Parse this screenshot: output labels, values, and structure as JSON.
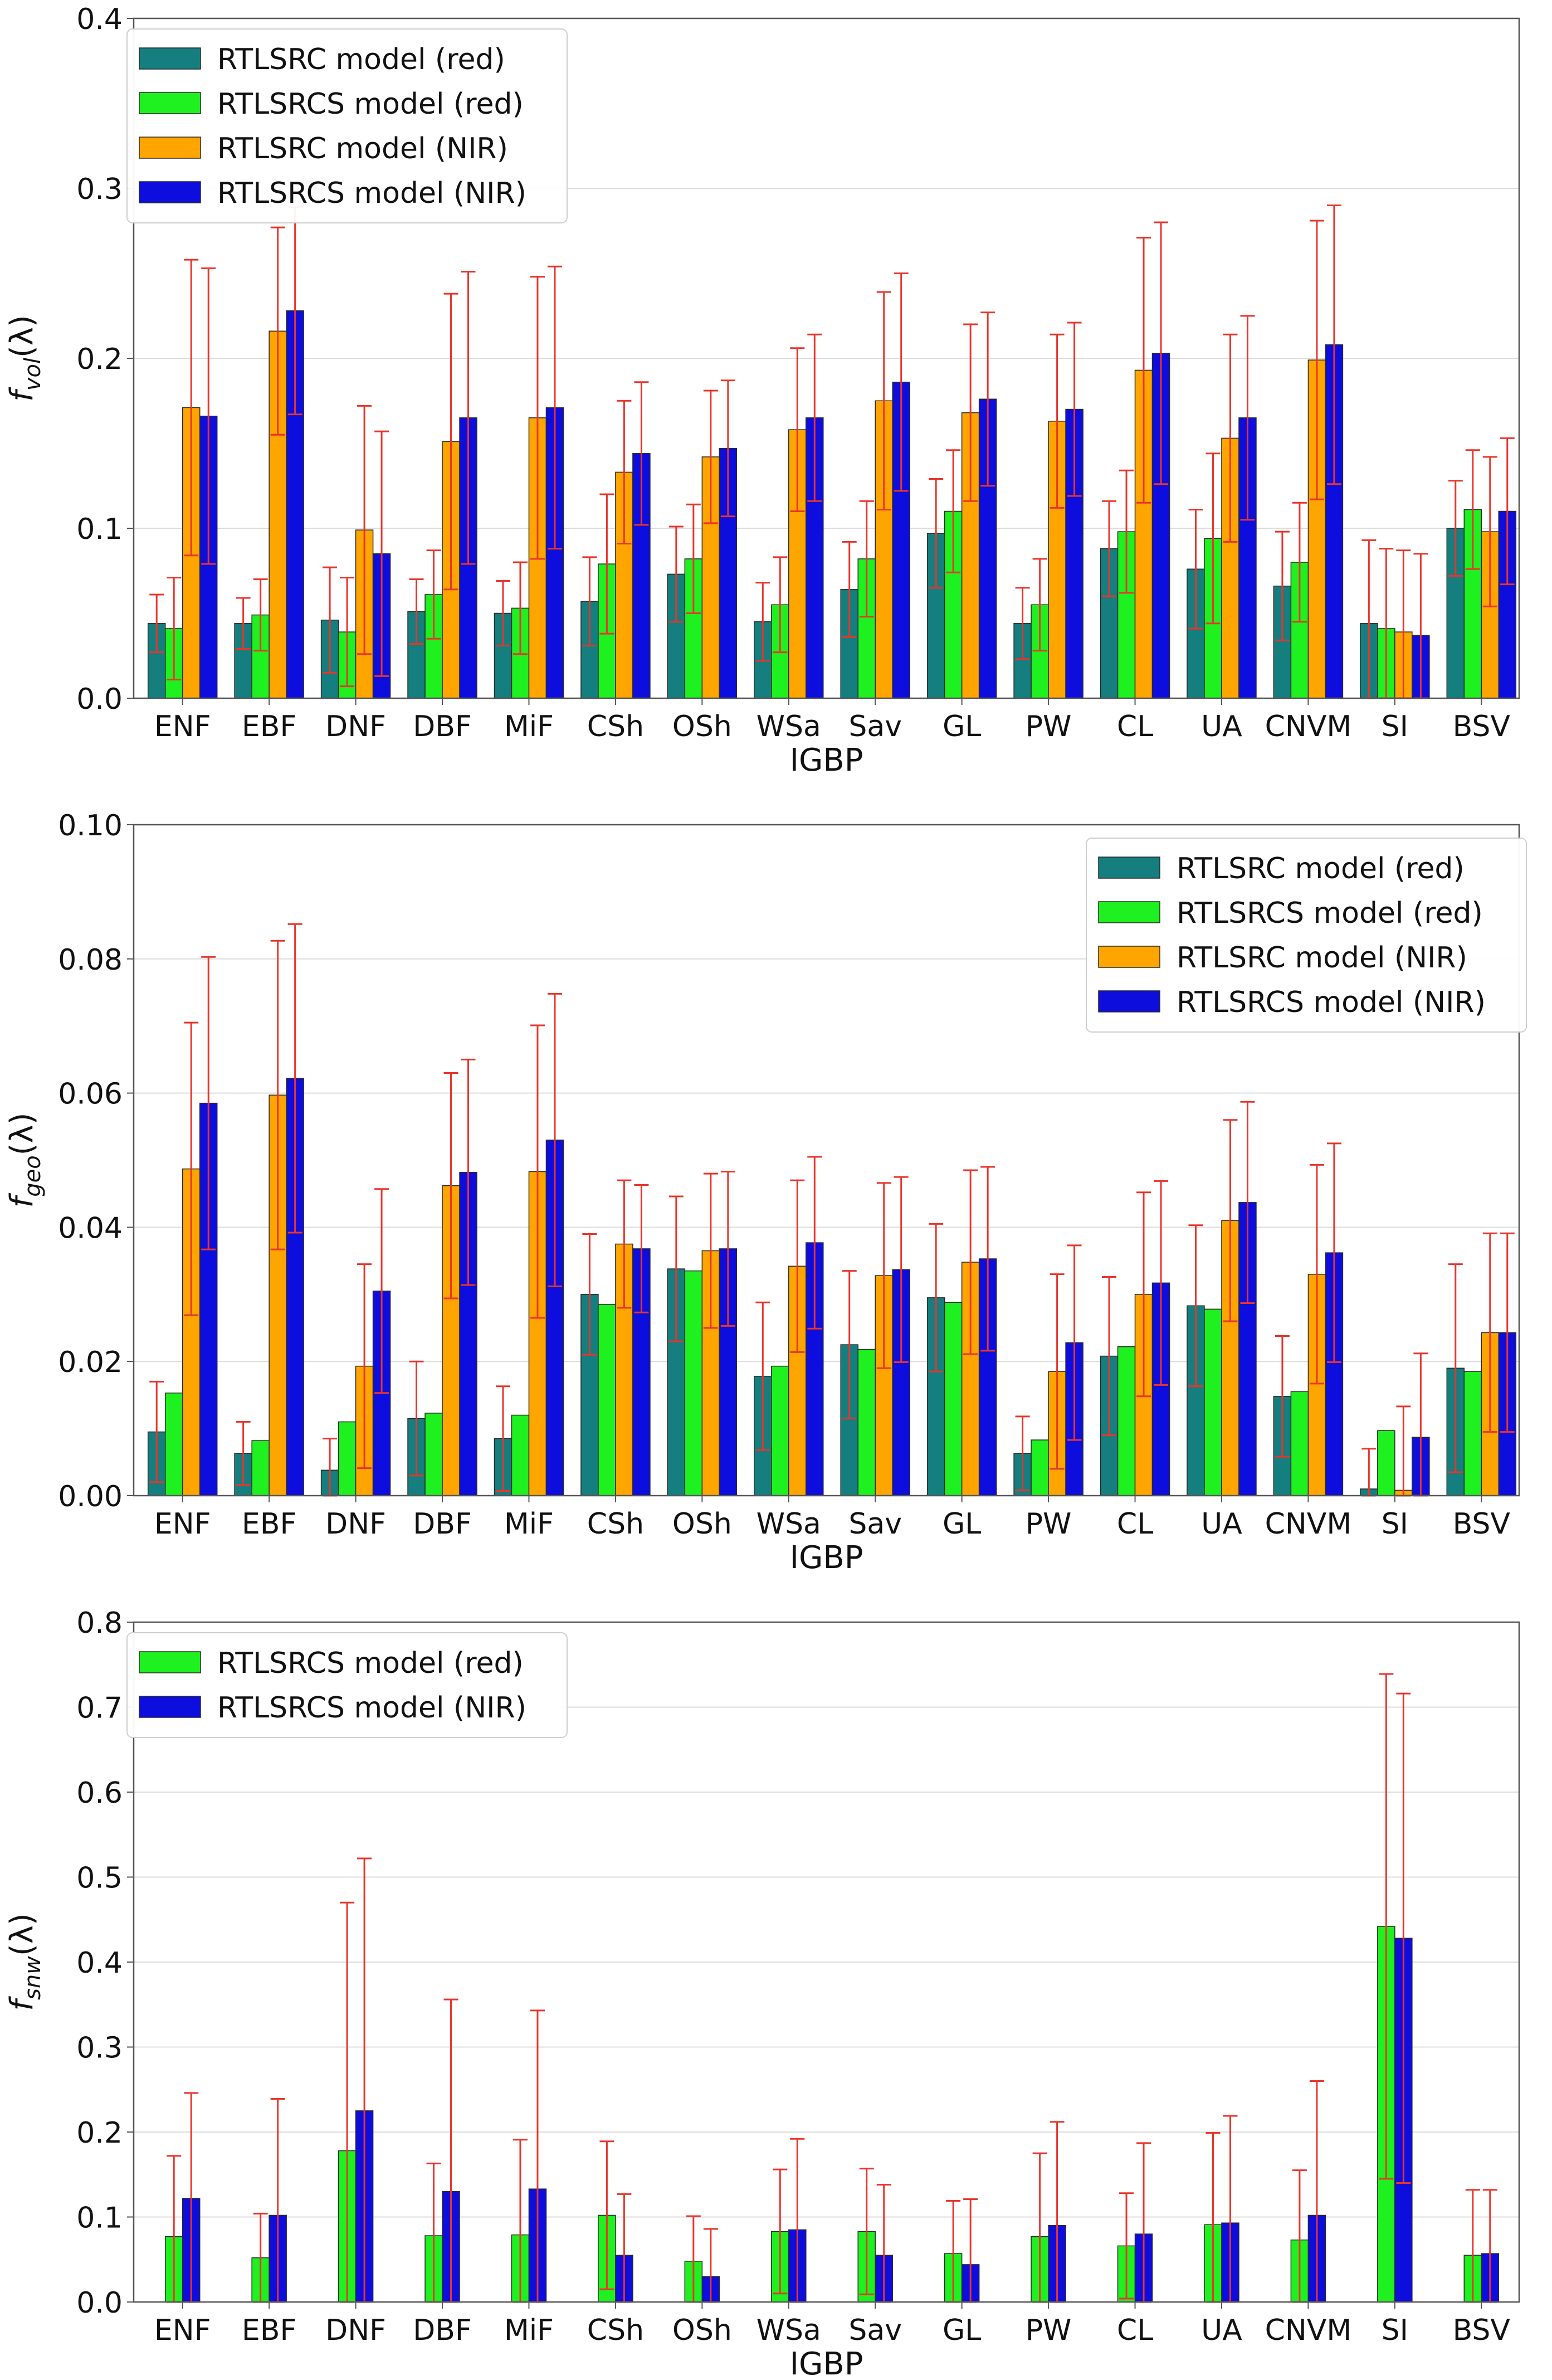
{
  "colors": {
    "teal": "#157e7e",
    "lime": "#1ff01f",
    "orange": "#ffa500",
    "blue": "#0d0ddd",
    "error": "#e8352c",
    "grid": "#dcdcdc",
    "axis": "#555555",
    "text": "#111111"
  },
  "chart_data": [
    {
      "type": "bar",
      "title": "",
      "xlabel": "IGBP",
      "ylabel_main": "f",
      "ylabel_sub": "vol",
      "ylabel_tail": "(λ)",
      "ylim": [
        0,
        0.4
      ],
      "yticks": [
        "0.0",
        "0.1",
        "0.2",
        "0.3",
        "0.4"
      ],
      "ytick_values": [
        0,
        0.1,
        0.2,
        0.3,
        0.4
      ],
      "grid": true,
      "legend_position": "top-left",
      "categories": [
        "ENF",
        "EBF",
        "DNF",
        "DBF",
        "MiF",
        "CSh",
        "OSh",
        "WSa",
        "Sav",
        "GL",
        "PW",
        "CL",
        "UA",
        "CNVM",
        "SI",
        "BSV"
      ],
      "series": [
        {
          "name": "RTLSRC model (red)",
          "color": "teal",
          "values": [
            0.044,
            0.044,
            0.046,
            0.051,
            0.05,
            0.057,
            0.073,
            0.045,
            0.064,
            0.097,
            0.044,
            0.088,
            0.076,
            0.066,
            0.044,
            0.1
          ],
          "errors": [
            0.017,
            0.015,
            0.031,
            0.019,
            0.019,
            0.026,
            0.028,
            0.023,
            0.028,
            0.032,
            0.021,
            0.028,
            0.035,
            0.032,
            0.049,
            0.028
          ]
        },
        {
          "name": "RTLSRCS model (red)",
          "color": "lime",
          "values": [
            0.041,
            0.049,
            0.039,
            0.061,
            0.053,
            0.079,
            0.082,
            0.055,
            0.082,
            0.11,
            0.055,
            0.098,
            0.094,
            0.08,
            0.041,
            0.111
          ],
          "errors": [
            0.03,
            0.021,
            0.032,
            0.026,
            0.027,
            0.041,
            0.032,
            0.028,
            0.034,
            0.036,
            0.027,
            0.036,
            0.05,
            0.035,
            0.047,
            0.035
          ]
        },
        {
          "name": "RTLSRC model (NIR)",
          "color": "orange",
          "values": [
            0.171,
            0.216,
            0.099,
            0.151,
            0.165,
            0.133,
            0.142,
            0.158,
            0.175,
            0.168,
            0.163,
            0.193,
            0.153,
            0.199,
            0.039,
            0.098
          ],
          "errors": [
            0.087,
            0.061,
            0.073,
            0.087,
            0.083,
            0.042,
            0.039,
            0.048,
            0.064,
            0.052,
            0.051,
            0.078,
            0.061,
            0.082,
            0.048,
            0.044
          ]
        },
        {
          "name": "RTLSRCS model (NIR)",
          "color": "blue",
          "values": [
            0.166,
            0.228,
            0.085,
            0.165,
            0.171,
            0.144,
            0.147,
            0.165,
            0.186,
            0.176,
            0.17,
            0.203,
            0.165,
            0.208,
            0.037,
            0.11
          ],
          "errors": [
            0.087,
            0.061,
            0.072,
            0.086,
            0.083,
            0.042,
            0.04,
            0.049,
            0.064,
            0.051,
            0.051,
            0.077,
            0.06,
            0.082,
            0.048,
            0.043
          ]
        }
      ]
    },
    {
      "type": "bar",
      "title": "",
      "xlabel": "IGBP",
      "ylabel_main": "f",
      "ylabel_sub": "geo",
      "ylabel_tail": "(λ)",
      "ylim": [
        0,
        0.1
      ],
      "yticks": [
        "0.00",
        "0.02",
        "0.04",
        "0.06",
        "0.08",
        "0.10"
      ],
      "ytick_values": [
        0,
        0.02,
        0.04,
        0.06,
        0.08,
        0.1
      ],
      "grid": true,
      "legend_position": "top-right",
      "categories": [
        "ENF",
        "EBF",
        "DNF",
        "DBF",
        "MiF",
        "CSh",
        "OSh",
        "WSa",
        "Sav",
        "GL",
        "PW",
        "CL",
        "UA",
        "CNVM",
        "SI",
        "BSV"
      ],
      "series": [
        {
          "name": "RTLSRC model (red)",
          "color": "teal",
          "values": [
            0.0095,
            0.0063,
            0.0038,
            0.0115,
            0.0085,
            0.03,
            0.0338,
            0.0178,
            0.0225,
            0.0295,
            0.0063,
            0.0208,
            0.0283,
            0.0148,
            0.001,
            0.019
          ],
          "errors": [
            0.0075,
            0.0047,
            0.0047,
            0.0085,
            0.0078,
            0.009,
            0.0108,
            0.011,
            0.011,
            0.011,
            0.0055,
            0.0118,
            0.012,
            0.009,
            0.006,
            0.0155
          ]
        },
        {
          "name": "RTLSRCS model (red)",
          "color": "lime",
          "values": [
            0.0153,
            0.0082,
            0.011,
            0.0123,
            0.012,
            0.0285,
            0.0335,
            0.0193,
            0.0218,
            0.0288,
            0.0083,
            0.0222,
            0.0278,
            0.0155,
            0.0097,
            0.0185
          ]
        },
        {
          "name": "RTLSRC model (NIR)",
          "color": "orange",
          "values": [
            0.0487,
            0.0597,
            0.0193,
            0.0462,
            0.0483,
            0.0375,
            0.0365,
            0.0342,
            0.0328,
            0.0348,
            0.0185,
            0.03,
            0.041,
            0.033,
            0.0008,
            0.0243
          ],
          "errors": [
            0.0218,
            0.023,
            0.0152,
            0.0168,
            0.0218,
            0.0095,
            0.0115,
            0.0128,
            0.0138,
            0.0137,
            0.0145,
            0.0152,
            0.015,
            0.0163,
            0.0125,
            0.0148
          ]
        },
        {
          "name": "RTLSRCS model (NIR)",
          "color": "blue",
          "values": [
            0.0585,
            0.0622,
            0.0305,
            0.0482,
            0.053,
            0.0368,
            0.0368,
            0.0377,
            0.0337,
            0.0353,
            0.0228,
            0.0317,
            0.0437,
            0.0362,
            0.0087,
            0.0243
          ],
          "errors": [
            0.0218,
            0.023,
            0.0152,
            0.0168,
            0.0218,
            0.0095,
            0.0115,
            0.0128,
            0.0138,
            0.0137,
            0.0145,
            0.0152,
            0.015,
            0.0163,
            0.0125,
            0.0148
          ]
        }
      ]
    },
    {
      "type": "bar",
      "title": "",
      "xlabel": "IGBP",
      "ylabel_main": "f",
      "ylabel_sub": "snw",
      "ylabel_tail": "(λ)",
      "ylim": [
        0,
        0.8
      ],
      "yticks": [
        "0.0",
        "0.1",
        "0.2",
        "0.3",
        "0.4",
        "0.5",
        "0.6",
        "0.7",
        "0.8"
      ],
      "ytick_values": [
        0,
        0.1,
        0.2,
        0.3,
        0.4,
        0.5,
        0.6,
        0.7,
        0.8
      ],
      "grid": true,
      "legend_position": "top-left",
      "categories": [
        "ENF",
        "EBF",
        "DNF",
        "DBF",
        "MiF",
        "CSh",
        "OSh",
        "WSa",
        "Sav",
        "GL",
        "PW",
        "CL",
        "UA",
        "CNVM",
        "SI",
        "BSV"
      ],
      "series": [
        {
          "name": "RTLSRCS model (red)",
          "color": "lime",
          "values": [
            0.077,
            0.052,
            0.178,
            0.078,
            0.079,
            0.102,
            0.048,
            0.083,
            0.083,
            0.057,
            0.077,
            0.066,
            0.091,
            0.073,
            0.442,
            0.055
          ],
          "errors": [
            0.095,
            0.052,
            0.292,
            0.085,
            0.112,
            0.087,
            0.053,
            0.073,
            0.074,
            0.062,
            0.098,
            0.062,
            0.108,
            0.082,
            0.297,
            0.077
          ]
        },
        {
          "name": "RTLSRCS model (NIR)",
          "color": "blue",
          "values": [
            0.122,
            0.102,
            0.225,
            0.13,
            0.133,
            0.055,
            0.03,
            0.085,
            0.055,
            0.044,
            0.09,
            0.08,
            0.093,
            0.102,
            0.428,
            0.057
          ],
          "errors": [
            0.124,
            0.137,
            0.297,
            0.226,
            0.21,
            0.072,
            0.056,
            0.107,
            0.083,
            0.077,
            0.122,
            0.107,
            0.126,
            0.158,
            0.288,
            0.075
          ]
        }
      ]
    }
  ]
}
